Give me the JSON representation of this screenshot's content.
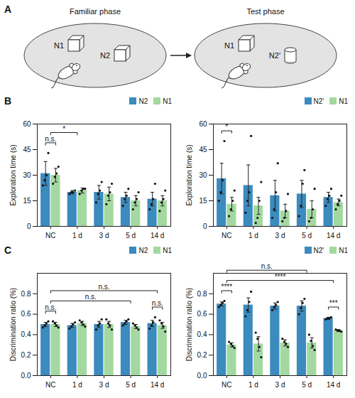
{
  "diagram": {
    "panel": "A",
    "phases": [
      {
        "title": "Familiar phase",
        "objects": [
          {
            "label": "N1",
            "shape": "cube"
          },
          {
            "label": "N2",
            "shape": "cube"
          }
        ]
      },
      {
        "title": "Test phase",
        "objects": [
          {
            "label": "N1",
            "shape": "cube"
          },
          {
            "label": "N2'",
            "shape": "cylinder"
          }
        ]
      }
    ]
  },
  "chart_data": [
    {
      "type": "bar",
      "panel": "B",
      "y_label": "Exploration time (s)",
      "categories": [
        "NC",
        "1 d",
        "3 d",
        "5 d",
        "14 d"
      ],
      "ylim": [
        0,
        60
      ],
      "yticks": [
        0,
        15,
        30,
        45,
        60
      ],
      "legend": "top",
      "series": [
        {
          "name": "N2",
          "color": "#3b8bbf",
          "values": [
            31,
            20,
            20,
            17,
            16
          ],
          "errors": [
            7,
            1,
            4,
            3,
            4
          ],
          "points": [
            [
              24,
              27,
              30,
              43
            ],
            [
              19,
              20,
              20,
              21
            ],
            [
              14,
              19,
              21,
              26
            ],
            [
              12,
              16,
              18,
              22
            ],
            [
              10,
              13,
              16,
              25
            ]
          ]
        },
        {
          "name": "N1",
          "color": "#a3d9a0",
          "values": [
            30,
            21,
            19,
            15,
            15
          ],
          "errors": [
            4,
            1.5,
            4,
            3,
            3
          ],
          "points": [
            [
              25,
              29,
              31,
              35
            ],
            [
              19,
              21,
              22,
              22
            ],
            [
              13,
              18,
              20,
              25
            ],
            [
              10,
              14,
              16,
              20
            ],
            [
              9,
              14,
              16,
              21
            ]
          ]
        }
      ],
      "annotations": [
        {
          "text": "n.s.",
          "from": {
            "category": "NC",
            "series": "N2"
          },
          "to": {
            "category": "NC",
            "series": "N1"
          }
        },
        {
          "text": "*",
          "from": {
            "category": "NC"
          },
          "to": {
            "category": "1 d"
          }
        }
      ]
    },
    {
      "type": "bar",
      "panel": "B",
      "y_label": "Exploration time (s)",
      "categories": [
        "NC",
        "1 d",
        "3 d",
        "5 d",
        "14 d"
      ],
      "ylim": [
        0,
        60
      ],
      "yticks": [
        0,
        15,
        30,
        45,
        60
      ],
      "legend": "top",
      "series": [
        {
          "name": "N2'",
          "color": "#3b8bbf",
          "values": [
            28,
            24,
            18,
            19,
            17
          ],
          "errors": [
            9,
            12,
            9,
            8,
            3
          ],
          "points": [
            [
              15,
              20,
              27,
              50
            ],
            [
              8,
              15,
              20,
              53
            ],
            [
              5,
              10,
              20,
              37
            ],
            [
              6,
              12,
              25,
              33
            ],
            [
              12,
              16,
              18,
              22
            ]
          ]
        },
        {
          "name": "N1",
          "color": "#a3d9a0",
          "values": [
            13,
            12,
            9,
            10,
            14
          ],
          "errors": [
            4,
            5,
            4,
            5,
            2
          ],
          "points": [
            [
              6,
              10,
              15,
              21
            ],
            [
              2,
              5,
              15,
              26
            ],
            [
              3,
              5,
              9,
              19
            ],
            [
              3,
              5,
              10,
              22
            ],
            [
              10,
              13,
              15,
              18
            ]
          ]
        }
      ],
      "annotations": [
        {
          "text": "*",
          "from": {
            "category": "NC",
            "series": "N2'"
          },
          "to": {
            "category": "NC",
            "series": "N1"
          }
        }
      ]
    },
    {
      "type": "bar",
      "panel": "C",
      "y_label": "Discrimination ratio (%)",
      "categories": [
        "NC",
        "1 d",
        "3 d",
        "5 d",
        "14 d"
      ],
      "ylim": [
        0,
        1
      ],
      "yticks": [
        {
          "value": 0,
          "label": "0.0"
        },
        0.2,
        0.4,
        0.6,
        0.8
      ],
      "legend": "top",
      "series": [
        {
          "name": "N2",
          "color": "#3b8bbf",
          "values": [
            0.5,
            0.49,
            0.5,
            0.52,
            0.51
          ],
          "errors": [
            0.02,
            0.02,
            0.03,
            0.02,
            0.03
          ],
          "points": [
            [
              0.47,
              0.49,
              0.51,
              0.53
            ],
            [
              0.46,
              0.48,
              0.5,
              0.52
            ],
            [
              0.45,
              0.49,
              0.51,
              0.55
            ],
            [
              0.49,
              0.51,
              0.53,
              0.55
            ],
            [
              0.46,
              0.49,
              0.52,
              0.57
            ]
          ]
        },
        {
          "name": "N1",
          "color": "#a3d9a0",
          "values": [
            0.5,
            0.51,
            0.5,
            0.48,
            0.49
          ],
          "errors": [
            0.02,
            0.02,
            0.03,
            0.02,
            0.03
          ],
          "points": [
            [
              0.53,
              0.51,
              0.49,
              0.47
            ],
            [
              0.54,
              0.52,
              0.5,
              0.48
            ],
            [
              0.55,
              0.51,
              0.49,
              0.45
            ],
            [
              0.51,
              0.49,
              0.47,
              0.45
            ],
            [
              0.54,
              0.51,
              0.48,
              0.43
            ]
          ]
        }
      ],
      "annotations": [
        {
          "text": "n.s.",
          "from": {
            "category": "NC",
            "series": "N2"
          },
          "to": {
            "category": "NC",
            "series": "N1"
          }
        },
        {
          "text": "n.s.",
          "from": {
            "category": "14 d",
            "series": "N2"
          },
          "to": {
            "category": "14 d",
            "series": "N1"
          }
        },
        {
          "text": "n.s.",
          "from": {
            "category": "NC"
          },
          "to": {
            "category": "5 d"
          }
        },
        {
          "text": "n.s.",
          "from": {
            "category": "NC"
          },
          "to": {
            "category": "14 d"
          }
        }
      ]
    },
    {
      "type": "bar",
      "panel": "C",
      "y_label": "Discrimination ratio (%)",
      "categories": [
        "NC",
        "1 d",
        "3 d",
        "5 d",
        "14 d"
      ],
      "ylim": [
        0,
        1
      ],
      "yticks": [
        {
          "value": 0,
          "label": "0.0"
        },
        0.2,
        0.4,
        0.6,
        0.8
      ],
      "legend": "top",
      "series": [
        {
          "name": "N2'",
          "color": "#3b8bbf",
          "values": [
            0.7,
            0.69,
            0.68,
            0.68,
            0.56
          ],
          "errors": [
            0.02,
            0.07,
            0.03,
            0.05,
            0.01
          ],
          "points": [
            [
              0.67,
              0.69,
              0.71,
              0.73
            ],
            [
              0.58,
              0.64,
              0.72,
              0.82
            ],
            [
              0.64,
              0.67,
              0.69,
              0.72
            ],
            [
              0.6,
              0.66,
              0.71,
              0.75
            ],
            [
              0.55,
              0.56,
              0.56,
              0.57
            ]
          ]
        },
        {
          "name": "N1",
          "color": "#a3d9a0",
          "values": [
            0.3,
            0.31,
            0.32,
            0.32,
            0.44
          ],
          "errors": [
            0.02,
            0.07,
            0.03,
            0.05,
            0.01
          ],
          "points": [
            [
              0.33,
              0.31,
              0.29,
              0.27
            ],
            [
              0.42,
              0.36,
              0.28,
              0.18
            ],
            [
              0.36,
              0.33,
              0.31,
              0.28
            ],
            [
              0.4,
              0.34,
              0.29,
              0.25
            ],
            [
              0.45,
              0.44,
              0.44,
              0.43
            ]
          ]
        }
      ],
      "annotations": [
        {
          "text": "****",
          "from": {
            "category": "NC",
            "series": "N2'"
          },
          "to": {
            "category": "NC",
            "series": "N1"
          }
        },
        {
          "text": "***",
          "from": {
            "category": "14 d",
            "series": "N2'"
          },
          "to": {
            "category": "14 d",
            "series": "N1"
          }
        },
        {
          "text": "****",
          "from": {
            "category": "NC"
          },
          "to": {
            "category": "14 d"
          }
        },
        {
          "text": "n.s.",
          "from": {
            "category": "NC"
          },
          "to": {
            "category": "5 d"
          }
        }
      ]
    }
  ]
}
